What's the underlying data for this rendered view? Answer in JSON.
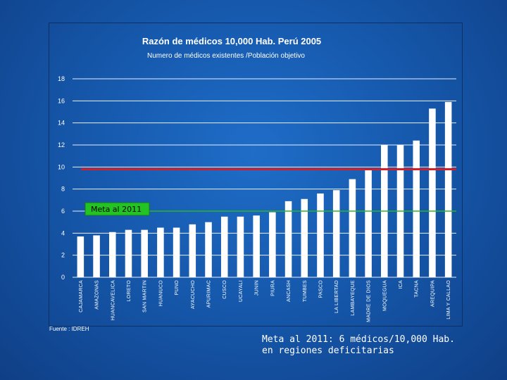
{
  "chart_data": {
    "type": "bar",
    "title": "Razón de médicos 10,000 Hab. Perú 2005",
    "subtitle": "Numero de médicos existentes /Población objetivo",
    "xlabel": "",
    "ylabel": "",
    "ylim": [
      0,
      18
    ],
    "yticks": [
      "0",
      "2",
      "4",
      "6",
      "8",
      "10",
      "12",
      "14",
      "16",
      "18"
    ],
    "grid": true,
    "categories": [
      "CAJAMARCA",
      "AMAZONAS",
      "HUANCAVELICA",
      "LORETO",
      "SAN MARTIN",
      "HUANUCO",
      "PUNO",
      "AYACUCHO",
      "APURIMAC",
      "CUSCO",
      "UCAYALI",
      "JUNIN",
      "PIURA",
      "ANCASH",
      "TUMBES",
      "PASCO",
      "LA LIBERTAD",
      "LAMBAYEQUE",
      "MADRE DE DIOS",
      "MOQUEGUA",
      "ICA",
      "TACNA",
      "AREQUIPA",
      "LIMA Y CALLAO"
    ],
    "values": [
      3.7,
      3.8,
      4.1,
      4.3,
      4.3,
      4.5,
      4.5,
      4.8,
      5.0,
      5.5,
      5.5,
      5.6,
      5.9,
      6.9,
      7.1,
      7.6,
      7.9,
      8.9,
      9.7,
      12.0,
      12.0,
      12.4,
      15.3,
      15.9
    ],
    "bar_color": "#ffffff",
    "reference_lines": [
      {
        "name": "Meta al 2011",
        "value": 6,
        "color": "#2bb52b",
        "label_background": "#22c322"
      },
      {
        "name": "red-reference-line",
        "value": 9.8,
        "color": "#d0202a"
      }
    ],
    "source": "Fuente : IDREH"
  },
  "caption": {
    "line1": "Meta al 2011: 6 médicos/10,000 Hab.",
    "line2": "en regiones deficitarias"
  }
}
